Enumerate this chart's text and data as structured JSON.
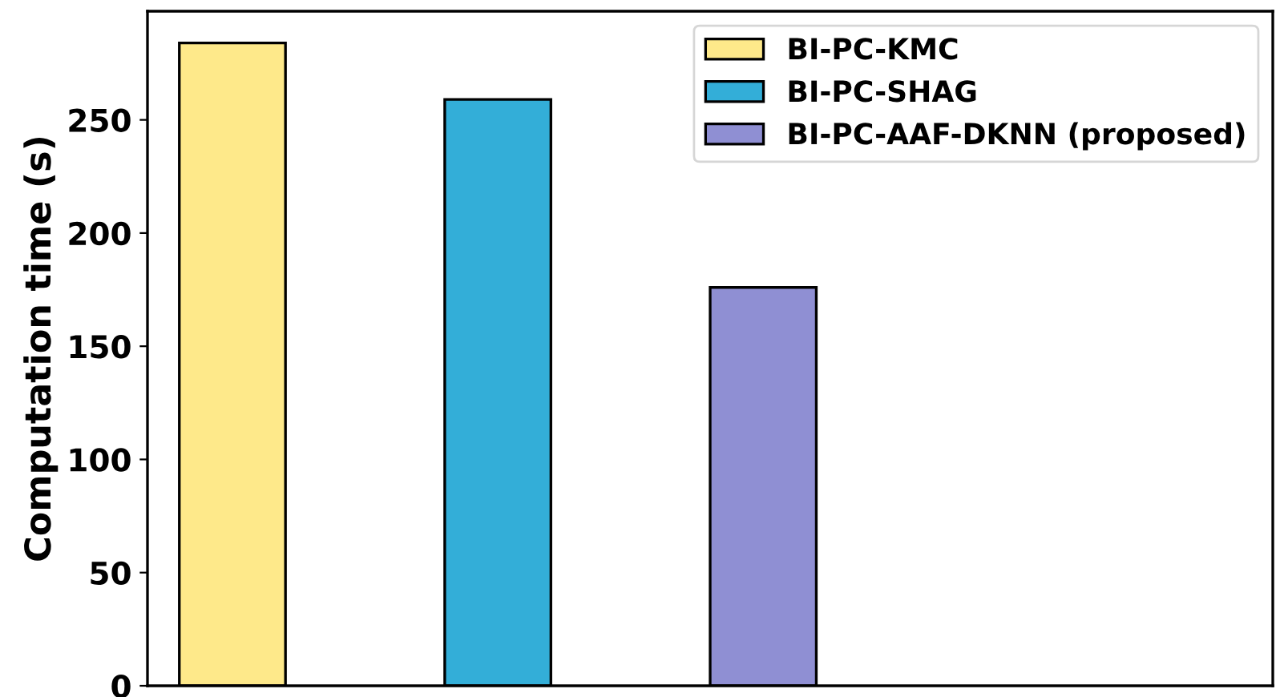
{
  "chart_data": {
    "type": "bar",
    "ylabel": "Computation time (s)",
    "categories": [
      null,
      null,
      null
    ],
    "series": [
      {
        "name": "BI-PC-KMC",
        "color": "#fee98a",
        "values": [
          284,
          null,
          null
        ]
      },
      {
        "name": "BI-PC-SHAG",
        "color": "#33aed8",
        "values": [
          null,
          259,
          null
        ]
      },
      {
        "name": "BI-PC-AAF-DKNN (proposed)",
        "color": "#8f8fd3",
        "values": [
          null,
          null,
          176
        ]
      }
    ],
    "ylim": [
      0,
      298
    ],
    "yticks": [
      0,
      50,
      100,
      150,
      200,
      250
    ],
    "stacked": true,
    "grid": false,
    "legend": "top right"
  }
}
